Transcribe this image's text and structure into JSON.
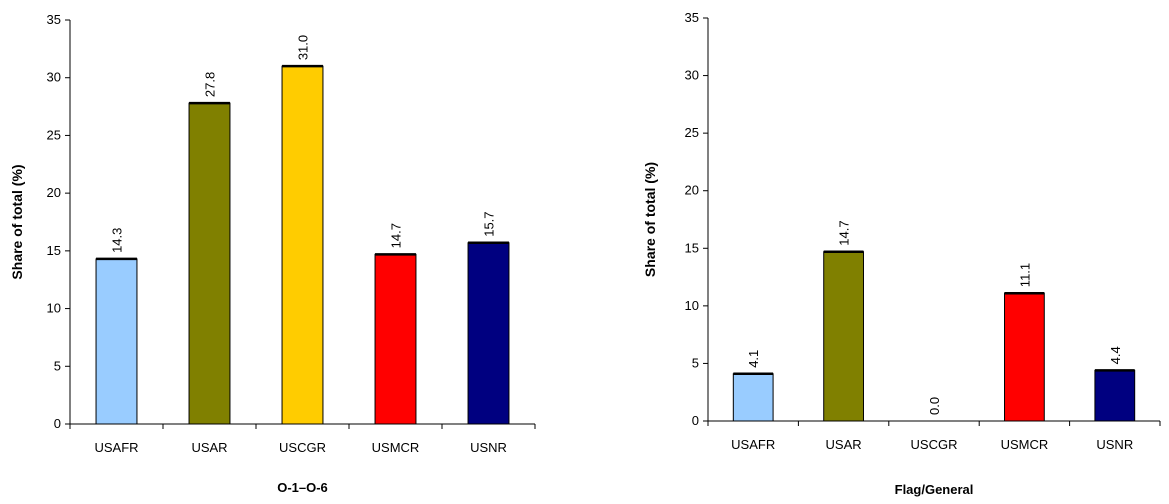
{
  "chart_data": [
    {
      "type": "bar",
      "categories": [
        "USAFR",
        "USAR",
        "USCGR",
        "USMCR",
        "USNR"
      ],
      "values": [
        14.3,
        27.8,
        31.0,
        14.7,
        15.7
      ],
      "value_labels": [
        "14.3",
        "27.8",
        "31.0",
        "14.7",
        "15.7"
      ],
      "colors": [
        "#99ccff",
        "#808000",
        "#ffcc00",
        "#ff0000",
        "#000080"
      ],
      "ylabel": "Share of total (%)",
      "xlabel": "O-1–O-6",
      "ylim": [
        0,
        35
      ],
      "yticks": [
        0,
        5,
        10,
        15,
        20,
        25,
        30,
        35
      ],
      "grid": false,
      "legend": "none"
    },
    {
      "type": "bar",
      "categories": [
        "USAFR",
        "USAR",
        "USCGR",
        "USMCR",
        "USNR"
      ],
      "values": [
        4.1,
        14.7,
        0.0,
        11.1,
        4.4
      ],
      "value_labels": [
        "4.1",
        "14.7",
        "0.0",
        "11.1",
        "4.4"
      ],
      "colors": [
        "#99ccff",
        "#808000",
        "#ffcc00",
        "#ff0000",
        "#000080"
      ],
      "ylabel": "Share of total (%)",
      "xlabel": "Flag/General",
      "ylim": [
        0,
        35
      ],
      "yticks": [
        0,
        5,
        10,
        15,
        20,
        25,
        30,
        35
      ],
      "grid": false,
      "legend": "none"
    }
  ]
}
